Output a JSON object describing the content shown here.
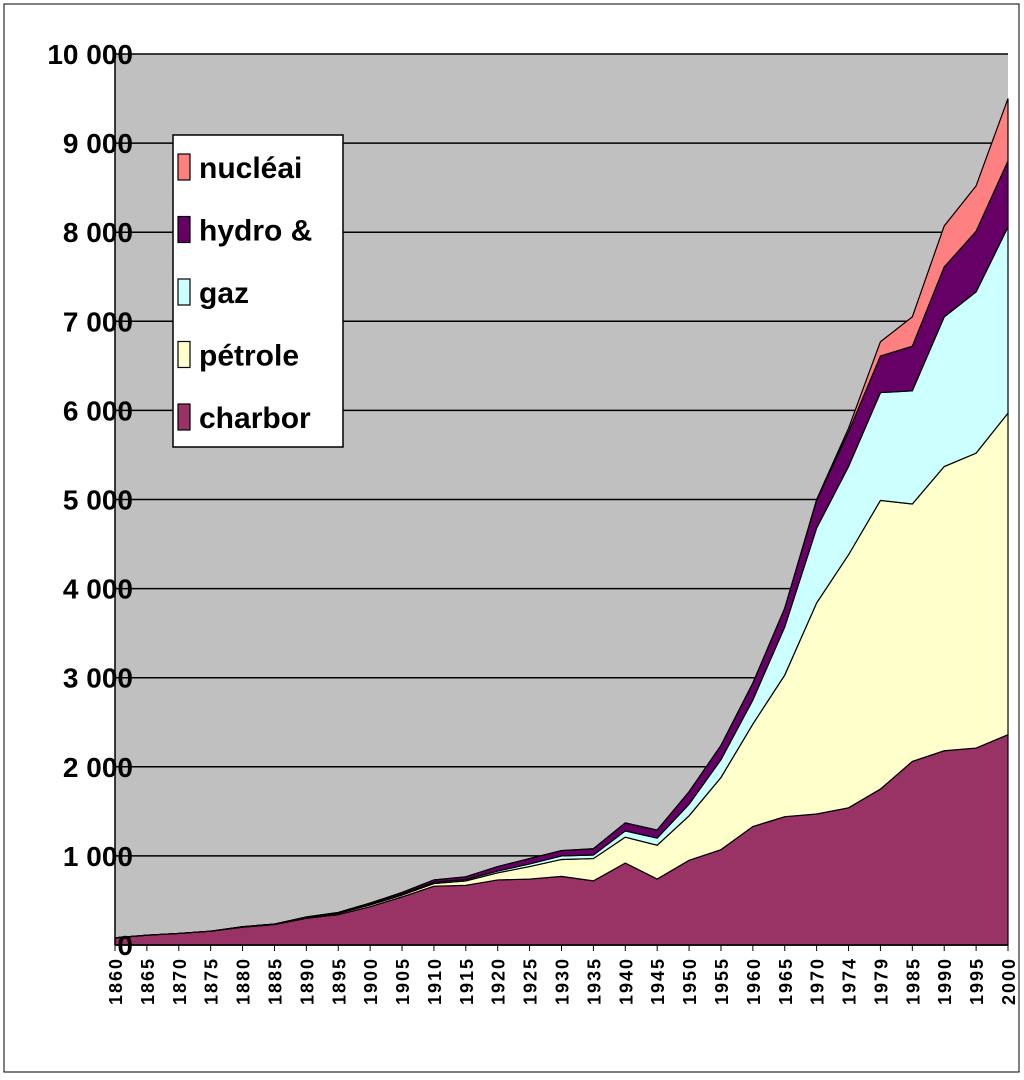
{
  "chart_data": {
    "type": "stacked_area",
    "categories": [
      "1860",
      "1865",
      "1870",
      "1875",
      "1880",
      "1885",
      "1890",
      "1895",
      "1900",
      "1905",
      "1910",
      "1915",
      "1920",
      "1925",
      "1930",
      "1935",
      "1940",
      "1945",
      "1950",
      "1955",
      "1960",
      "1965",
      "1970",
      "1974",
      "1979",
      "1985",
      "1990",
      "1995",
      "2000"
    ],
    "series": [
      {
        "name": "charbor",
        "color": "#993366",
        "values": [
          80,
          110,
          130,
          155,
          200,
          230,
          300,
          340,
          430,
          540,
          660,
          670,
          730,
          740,
          770,
          720,
          920,
          740,
          950,
          1070,
          1330,
          1440,
          1470,
          1540,
          1750,
          2060,
          2180,
          2210,
          2360
        ]
      },
      {
        "name": "pétrole",
        "color": "#ffffcc",
        "values": [
          0,
          0,
          0,
          0,
          5,
          5,
          10,
          15,
          20,
          20,
          30,
          50,
          80,
          140,
          190,
          250,
          290,
          380,
          500,
          810,
          1150,
          1590,
          2370,
          2840,
          3240,
          2890,
          3190,
          3310,
          3610
        ]
      },
      {
        "name": "gaz",
        "color": "#ccffff",
        "values": [
          0,
          0,
          0,
          0,
          0,
          0,
          0,
          0,
          5,
          10,
          15,
          15,
          20,
          30,
          40,
          40,
          70,
          80,
          130,
          200,
          270,
          540,
          840,
          990,
          1210,
          1270,
          1680,
          1810,
          2090
        ]
      },
      {
        "name": "hydro &",
        "color": "#660066",
        "values": [
          0,
          0,
          0,
          0,
          0,
          0,
          5,
          10,
          15,
          20,
          25,
          30,
          50,
          60,
          60,
          70,
          90,
          90,
          140,
          160,
          190,
          210,
          310,
          390,
          410,
          500,
          560,
          680,
          740
        ]
      },
      {
        "name": "nucléai",
        "color": "#ff8080",
        "values": [
          0,
          0,
          0,
          0,
          0,
          0,
          0,
          0,
          0,
          0,
          0,
          0,
          0,
          0,
          0,
          0,
          0,
          0,
          0,
          0,
          0,
          0,
          10,
          40,
          160,
          330,
          460,
          510,
          700
        ]
      }
    ],
    "ylim": [
      0,
      10000
    ],
    "yticks": [
      0,
      {
        "value": 1000,
        "label": "1 000"
      },
      {
        "value": 2000,
        "label": "2 000"
      },
      {
        "value": 3000,
        "label": "3 000"
      },
      {
        "value": 4000,
        "label": "4 000"
      },
      {
        "value": 5000,
        "label": "5 000"
      },
      {
        "value": 6000,
        "label": "6 000"
      },
      {
        "value": 7000,
        "label": "7 000"
      },
      {
        "value": 8000,
        "label": "8 000"
      },
      {
        "value": 9000,
        "label": "9 000"
      },
      {
        "value": 10000,
        "label": "10 000"
      }
    ],
    "grid": true,
    "legend": "upper left"
  }
}
